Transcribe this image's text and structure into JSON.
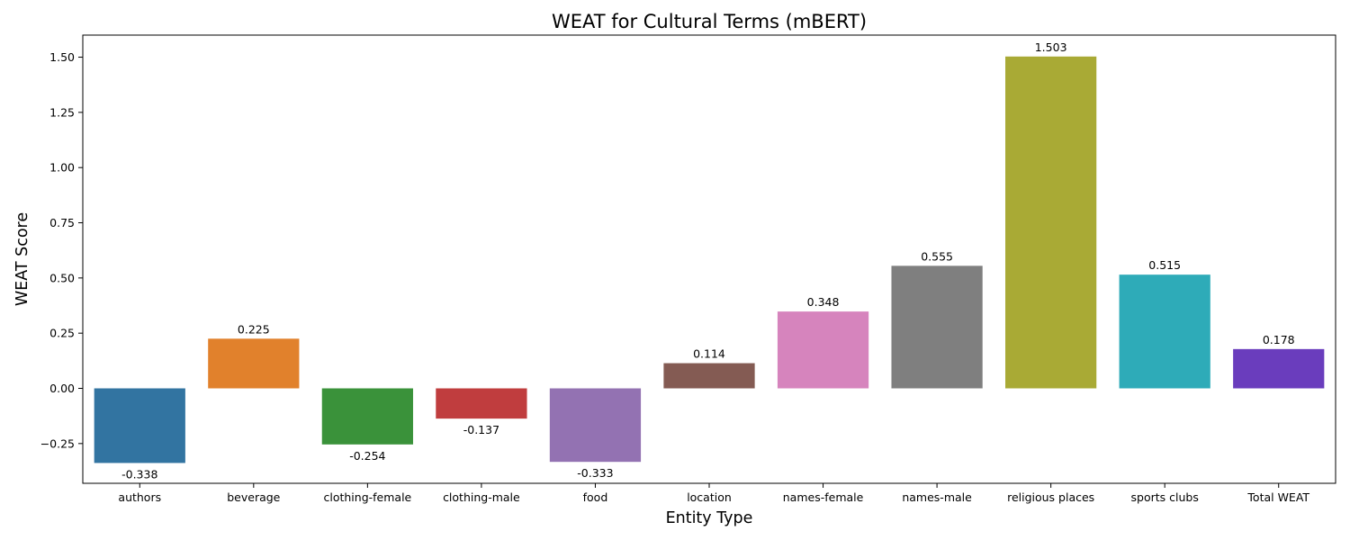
{
  "chart_data": {
    "type": "bar",
    "title": "WEAT for Cultural Terms (mBERT)",
    "xlabel": "Entity Type",
    "ylabel": "WEAT Score",
    "categories": [
      "authors",
      "beverage",
      "clothing-female",
      "clothing-male",
      "food",
      "location",
      "names-female",
      "names-male",
      "religious places",
      "sports clubs",
      "Total WEAT"
    ],
    "values": [
      -0.338,
      0.225,
      -0.254,
      -0.137,
      -0.333,
      0.114,
      0.348,
      0.555,
      1.503,
      0.515,
      0.178
    ],
    "value_labels": [
      "-0.338",
      "0.225",
      "-0.254",
      "-0.137",
      "-0.333",
      "0.114",
      "0.348",
      "0.555",
      "1.503",
      "0.515",
      "0.178"
    ],
    "colors": [
      "#3274a1",
      "#e1812c",
      "#3a923a",
      "#c03d3e",
      "#9372b2",
      "#845b53",
      "#d684bd",
      "#7f7f7f",
      "#a9aa35",
      "#2eabb8",
      "#6a3dbd"
    ],
    "yticks": [
      -0.25,
      0.0,
      0.25,
      0.5,
      0.75,
      1.0,
      1.25,
      1.5
    ],
    "ytick_labels": [
      "−0.25",
      "0.00",
      "0.25",
      "0.50",
      "0.75",
      "1.00",
      "1.25",
      "1.50"
    ],
    "ylim": [
      -0.43,
      1.6
    ],
    "grid": false,
    "legend": "none"
  }
}
